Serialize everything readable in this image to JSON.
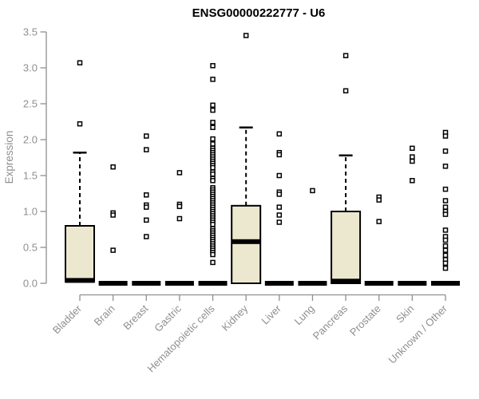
{
  "page": {
    "background": "#ffffff"
  },
  "chart_data": {
    "type": "boxplot",
    "title": "ENSG00000222777 - U6",
    "ylabel": "Expression",
    "xlabel": "",
    "ylim": [
      0,
      3.5
    ],
    "yticks": [
      0.0,
      0.5,
      1.0,
      1.5,
      2.0,
      2.5,
      3.0,
      3.5
    ],
    "grid": false,
    "legend": false,
    "categories": [
      "Bladder",
      "Brain",
      "Breast",
      "Gastric",
      "Hematopoietic cells",
      "Kidney",
      "Liver",
      "Lung",
      "Pancreas",
      "Prostate",
      "Skin",
      "Unknown / Other"
    ],
    "series": [
      {
        "label": "Bladder",
        "q1": 0.02,
        "median": 0.04,
        "q3": 0.8,
        "whisker_low": 0.02,
        "whisker_high": 1.82,
        "outliers": [
          2.22,
          3.07
        ]
      },
      {
        "label": "Brain",
        "q1": 0.0,
        "median": 0.0,
        "q3": 0.0,
        "whisker_low": 0.0,
        "whisker_high": 0.0,
        "outliers": [
          1.62,
          0.98,
          0.95,
          0.46
        ]
      },
      {
        "label": "Breast",
        "q1": 0.0,
        "median": 0.0,
        "q3": 0.0,
        "whisker_low": 0.0,
        "whisker_high": 0.0,
        "outliers": [
          2.05,
          1.86,
          1.23,
          1.09,
          1.06,
          0.88,
          0.65
        ]
      },
      {
        "label": "Gastric",
        "q1": 0.0,
        "median": 0.0,
        "q3": 0.0,
        "whisker_low": 0.0,
        "whisker_high": 0.0,
        "outliers": [
          1.54,
          1.1,
          1.07,
          0.9
        ]
      },
      {
        "label": "Hematopoietic cells",
        "q1": 0.0,
        "median": 0.0,
        "q3": 0.0,
        "whisker_low": 0.0,
        "whisker_high": 0.0,
        "outliers": [
          3.03,
          2.84,
          2.48,
          2.41,
          2.24,
          2.17,
          2.01,
          1.94,
          1.88,
          1.85,
          1.82,
          1.79,
          1.76,
          1.73,
          1.7,
          1.67,
          1.64,
          1.61,
          1.55,
          1.52,
          1.46,
          1.43,
          1.33,
          1.3,
          1.27,
          1.24,
          1.21,
          1.18,
          1.15,
          1.12,
          1.09,
          1.06,
          1.03,
          1.0,
          0.97,
          0.94,
          0.91,
          0.88,
          0.85,
          0.82,
          0.76,
          0.73,
          0.7,
          0.67,
          0.64,
          0.61,
          0.58,
          0.55,
          0.52,
          0.49,
          0.46,
          0.43,
          0.4,
          0.29
        ]
      },
      {
        "label": "Kidney",
        "q1": 0.0,
        "median": 0.58,
        "q3": 1.08,
        "whisker_low": 0.0,
        "whisker_high": 2.17,
        "outliers": [
          3.45
        ]
      },
      {
        "label": "Liver",
        "q1": 0.0,
        "median": 0.0,
        "q3": 0.0,
        "whisker_low": 0.0,
        "whisker_high": 0.0,
        "outliers": [
          2.08,
          1.82,
          1.79,
          1.5,
          1.27,
          1.24,
          1.06,
          0.95,
          0.85
        ]
      },
      {
        "label": "Lung",
        "q1": 0.0,
        "median": 0.0,
        "q3": 0.0,
        "whisker_low": 0.0,
        "whisker_high": 0.0,
        "outliers": [
          1.29
        ]
      },
      {
        "label": "Pancreas",
        "q1": 0.0,
        "median": 0.03,
        "q3": 1.0,
        "whisker_low": 0.0,
        "whisker_high": 1.78,
        "outliers": [
          2.68,
          3.17
        ]
      },
      {
        "label": "Prostate",
        "q1": 0.0,
        "median": 0.0,
        "q3": 0.0,
        "whisker_low": 0.0,
        "whisker_high": 0.0,
        "outliers": [
          1.2,
          1.16,
          0.86
        ]
      },
      {
        "label": "Skin",
        "q1": 0.0,
        "median": 0.0,
        "q3": 0.0,
        "whisker_low": 0.0,
        "whisker_high": 0.0,
        "outliers": [
          1.88,
          1.76,
          1.7,
          1.43
        ]
      },
      {
        "label": "Unknown / Other",
        "q1": 0.0,
        "median": 0.0,
        "q3": 0.0,
        "whisker_low": 0.0,
        "whisker_high": 0.0,
        "outliers": [
          2.1,
          2.05,
          1.84,
          1.63,
          1.31,
          1.15,
          1.06,
          1.0,
          0.96,
          0.74,
          0.65,
          0.6,
          0.52,
          0.46,
          0.39,
          0.33,
          0.28,
          0.21
        ]
      }
    ],
    "colors": {
      "box_fill": "#ece8cf",
      "box_border": "#000000",
      "median": "#000000",
      "whisker": "#000000",
      "outlier_stroke": "#000000",
      "outlier_fill": "#ffffff",
      "axis": "#8f8f8f",
      "tick_label": "#8f8f8f",
      "title": "#000000"
    }
  }
}
